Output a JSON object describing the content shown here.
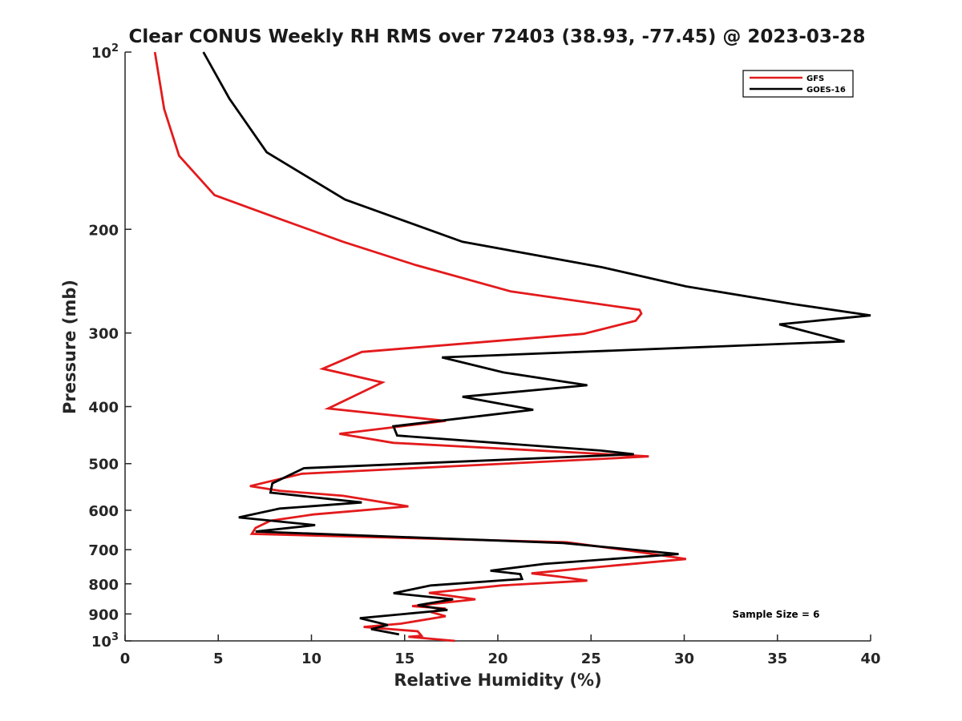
{
  "chart_data": {
    "type": "line",
    "title": "Clear CONUS Weekly RH RMS over 72403 (38.93, -77.45) @ 2023-03-28",
    "xlabel": "Relative Humidity (%)",
    "ylabel": "Pressure (mb)",
    "xlim": [
      0,
      40
    ],
    "ylim": [
      100,
      1000
    ],
    "y_scale": "log",
    "y_reversed": true,
    "grid": false,
    "legend_position": "top-right",
    "x_ticks": [
      "0",
      "5",
      "10",
      "15",
      "20",
      "25",
      "30",
      "35",
      "40"
    ],
    "y_ticks": [
      {
        "value": 100,
        "label": "10",
        "exp": "2"
      },
      {
        "value": 200,
        "label": "200"
      },
      {
        "value": 300,
        "label": "300"
      },
      {
        "value": 400,
        "label": "400"
      },
      {
        "value": 500,
        "label": "500"
      },
      {
        "value": 600,
        "label": "600"
      },
      {
        "value": 700,
        "label": "700"
      },
      {
        "value": 800,
        "label": "800"
      },
      {
        "value": 900,
        "label": "900"
      },
      {
        "value": 1000,
        "label": "10",
        "exp": "3"
      }
    ],
    "series": [
      {
        "name": "GFS",
        "color": "#e31a1c",
        "points": [
          [
            1.6,
            100
          ],
          [
            2.1,
            125
          ],
          [
            2.9,
            150
          ],
          [
            4.8,
            175
          ],
          [
            7.9,
            190
          ],
          [
            11.7,
            210
          ],
          [
            15.6,
            230
          ],
          [
            20.7,
            255
          ],
          [
            27.6,
            274
          ],
          [
            27.7,
            278
          ],
          [
            27.4,
            286
          ],
          [
            24.6,
            301
          ],
          [
            12.7,
            323
          ],
          [
            10.6,
            345
          ],
          [
            13.8,
            364
          ],
          [
            10.9,
            403
          ],
          [
            17.2,
            423
          ],
          [
            11.5,
            445
          ],
          [
            14.4,
            461
          ],
          [
            28.1,
            486
          ],
          [
            25.5,
            491
          ],
          [
            9.5,
            520
          ],
          [
            6.7,
            546
          ],
          [
            8.3,
            556
          ],
          [
            11.7,
            567
          ],
          [
            15.2,
            591
          ],
          [
            10.1,
            610
          ],
          [
            7.8,
            625
          ],
          [
            7.0,
            643
          ],
          [
            6.8,
            658
          ],
          [
            23.7,
            680
          ],
          [
            27.0,
            702
          ],
          [
            30.1,
            726
          ],
          [
            24.6,
            753
          ],
          [
            21.8,
            768
          ],
          [
            23.2,
            777
          ],
          [
            24.8,
            790
          ],
          [
            20.2,
            805
          ],
          [
            16.3,
            829
          ],
          [
            18.8,
            850
          ],
          [
            15.4,
            873
          ],
          [
            17.2,
            881
          ],
          [
            16.4,
            893
          ],
          [
            17.2,
            908
          ],
          [
            14.8,
            935
          ],
          [
            12.8,
            947
          ],
          [
            15.7,
            963
          ],
          [
            15.9,
            980
          ],
          [
            15.2,
            984
          ],
          [
            17.7,
            1000
          ]
        ]
      },
      {
        "name": "GOES-16",
        "color": "#000000",
        "points": [
          [
            4.2,
            100
          ],
          [
            5.6,
            120
          ],
          [
            7.6,
            148
          ],
          [
            11.8,
            178
          ],
          [
            18.1,
            210
          ],
          [
            25.6,
            232
          ],
          [
            30.1,
            250
          ],
          [
            35.9,
            268
          ],
          [
            40.0,
            280
          ],
          [
            35.1,
            290
          ],
          [
            38.6,
            310
          ],
          [
            17.0,
            330
          ],
          [
            20.3,
            350
          ],
          [
            24.8,
            368
          ],
          [
            18.1,
            385
          ],
          [
            21.9,
            405
          ],
          [
            14.4,
            432
          ],
          [
            14.6,
            448
          ],
          [
            25.5,
            475
          ],
          [
            27.3,
            482
          ],
          [
            9.6,
            509
          ],
          [
            7.9,
            540
          ],
          [
            7.8,
            560
          ],
          [
            12.7,
            582
          ],
          [
            8.3,
            596
          ],
          [
            6.1,
            617
          ],
          [
            10.2,
            636
          ],
          [
            7.0,
            652
          ],
          [
            23.5,
            682
          ],
          [
            29.7,
            712
          ],
          [
            22.5,
            740
          ],
          [
            19.6,
            760
          ],
          [
            21.2,
            770
          ],
          [
            21.3,
            785
          ],
          [
            16.4,
            805
          ],
          [
            14.4,
            830
          ],
          [
            17.6,
            850
          ],
          [
            15.7,
            870
          ],
          [
            17.3,
            886
          ],
          [
            12.6,
            915
          ],
          [
            14.1,
            940
          ],
          [
            13.2,
            955
          ],
          [
            14.7,
            975
          ]
        ]
      }
    ],
    "annotations": [
      "Sample Size = 6"
    ]
  }
}
